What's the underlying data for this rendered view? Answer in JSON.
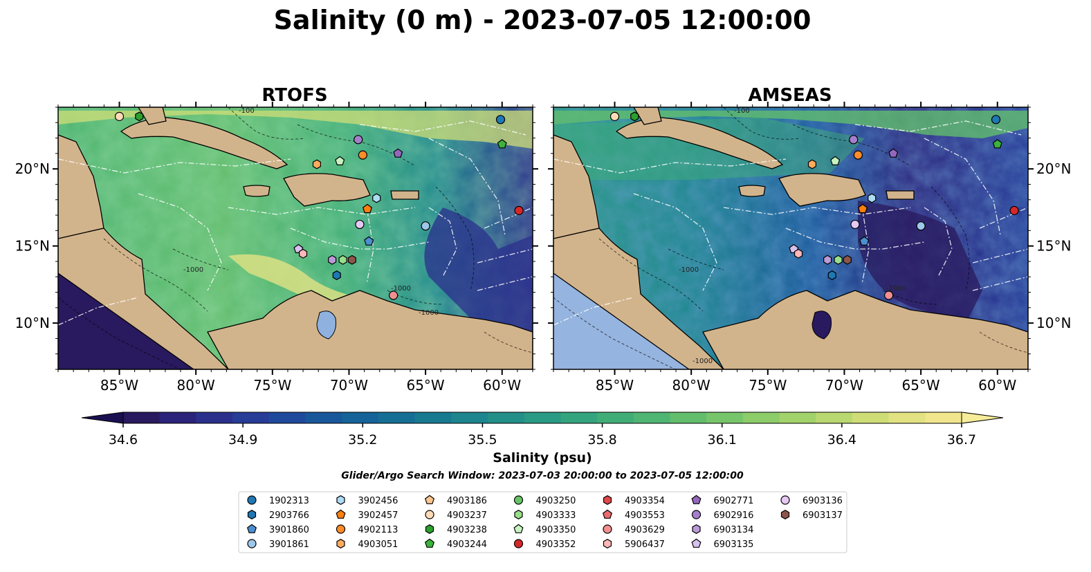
{
  "figure": {
    "title": "Salinity (0 m) - 2023-07-05 12:00:00",
    "search_window": "Glider/Argo Search Window: 2023-07-03 20:00:00 to 2023-07-05 12:00:00"
  },
  "chart_data": [
    {
      "type": "heatmap",
      "title": "RTOFS",
      "variable": "Salinity (0 m)",
      "lon_range": [
        -89,
        -58
      ],
      "lat_range": [
        7,
        24
      ],
      "x_ticks": [
        "85°W",
        "80°W",
        "75°W",
        "70°W",
        "65°W",
        "60°W"
      ],
      "y_ticks": [
        "10°N",
        "15°N",
        "20°N"
      ],
      "y_tick_side": "left",
      "bathymetry_contour_labels": [
        "-1000",
        "-1000",
        "-100",
        "-1000"
      ]
    },
    {
      "type": "heatmap",
      "title": "AMSEAS",
      "variable": "Salinity (0 m)",
      "lon_range": [
        -89,
        -58
      ],
      "lat_range": [
        7,
        24
      ],
      "x_ticks": [
        "85°W",
        "80°W",
        "75°W",
        "70°W",
        "65°W",
        "60°W"
      ],
      "y_ticks": [
        "10°N",
        "15°N",
        "20°N"
      ],
      "y_tick_side": "right",
      "bathymetry_contour_labels": [
        "-1000",
        "-1000",
        "-100",
        "-1000"
      ]
    }
  ],
  "colorbar": {
    "label": "Salinity (psu)",
    "min": 34.6,
    "max": 36.7,
    "ticks": [
      "34.6",
      "34.9",
      "35.2",
      "35.5",
      "35.8",
      "36.1",
      "36.4",
      "36.7"
    ],
    "extend": "both",
    "colors": [
      "#29195e",
      "#2b237a",
      "#2b2f8c",
      "#263c97",
      "#1f4a9b",
      "#19579b",
      "#156398",
      "#156f95",
      "#177a91",
      "#1c858d",
      "#228f88",
      "#299a83",
      "#33a47d",
      "#40ad77",
      "#4fb572",
      "#62bd6d",
      "#77c56a",
      "#8ccc69",
      "#a2d26a",
      "#b9d86f",
      "#cfdd77",
      "#e2e283",
      "#f1e68e"
    ]
  },
  "legend": {
    "items": [
      {
        "label": "1902313",
        "marker": "circle",
        "color": "#1f77b4"
      },
      {
        "label": "2903766",
        "marker": "hexagon",
        "color": "#1f77b4"
      },
      {
        "label": "3901860",
        "marker": "pentagon",
        "color": "#4c8fd1"
      },
      {
        "label": "3901861",
        "marker": "circle",
        "color": "#9ec7ea"
      },
      {
        "label": "3902456",
        "marker": "hexagon",
        "color": "#aedcf5"
      },
      {
        "label": "3902457",
        "marker": "pentagon",
        "color": "#ff7f0e"
      },
      {
        "label": "4902113",
        "marker": "circle",
        "color": "#ff8c2a"
      },
      {
        "label": "4903051",
        "marker": "hexagon",
        "color": "#ffab5e"
      },
      {
        "label": "4903186",
        "marker": "pentagon",
        "color": "#ffc58f"
      },
      {
        "label": "4903237",
        "marker": "circle",
        "color": "#ffdcb8"
      },
      {
        "label": "4903238",
        "marker": "hexagon",
        "color": "#2ca02c"
      },
      {
        "label": "4903244",
        "marker": "pentagon",
        "color": "#3cb33c"
      },
      {
        "label": "4903250",
        "marker": "circle",
        "color": "#66c466"
      },
      {
        "label": "4903333",
        "marker": "hexagon",
        "color": "#98df8a"
      },
      {
        "label": "4903350",
        "marker": "pentagon",
        "color": "#c7f2c0"
      },
      {
        "label": "4903352",
        "marker": "circle",
        "color": "#d62728"
      },
      {
        "label": "4903354",
        "marker": "hexagon",
        "color": "#e0484a"
      },
      {
        "label": "4903553",
        "marker": "pentagon",
        "color": "#eb6a6c"
      },
      {
        "label": "4903629",
        "marker": "circle",
        "color": "#f28f90"
      },
      {
        "label": "5906437",
        "marker": "hexagon",
        "color": "#ffb7b8"
      },
      {
        "label": "6902771",
        "marker": "pentagon",
        "color": "#9467bd"
      },
      {
        "label": "6902916",
        "marker": "circle",
        "color": "#a57fcc"
      },
      {
        "label": "6903134",
        "marker": "hexagon",
        "color": "#bb9ad8"
      },
      {
        "label": "6903135",
        "marker": "pentagon",
        "color": "#d8c0f0"
      },
      {
        "label": "6903136",
        "marker": "circle",
        "color": "#e6c8f5"
      },
      {
        "label": "6903137",
        "marker": "hexagon",
        "color": "#8c564b"
      }
    ]
  },
  "float_positions": [
    {
      "id": "4903237",
      "lon": -85.0,
      "lat": 23.4
    },
    {
      "id": "4903238",
      "lon": -83.7,
      "lat": 23.4
    },
    {
      "id": "1902313",
      "lon": -60.1,
      "lat": 23.2
    },
    {
      "id": "4903244",
      "lon": -60.0,
      "lat": 21.6
    },
    {
      "id": "6902916",
      "lon": -69.4,
      "lat": 21.9
    },
    {
      "id": "6902771",
      "lon": -66.8,
      "lat": 21.0
    },
    {
      "id": "4902113",
      "lon": -69.1,
      "lat": 20.9
    },
    {
      "id": "4903051",
      "lon": -72.1,
      "lat": 20.3
    },
    {
      "id": "4903350",
      "lon": -70.6,
      "lat": 20.5
    },
    {
      "id": "3902456",
      "lon": -68.2,
      "lat": 18.1
    },
    {
      "id": "3902457",
      "lon": -68.8,
      "lat": 17.4
    },
    {
      "id": "4903352",
      "lon": -58.9,
      "lat": 17.3
    },
    {
      "id": "6903136",
      "lon": -69.3,
      "lat": 16.4
    },
    {
      "id": "3901861",
      "lon": -65.0,
      "lat": 16.3
    },
    {
      "id": "3901860",
      "lon": -68.7,
      "lat": 15.3
    },
    {
      "id": "6903135",
      "lon": -73.3,
      "lat": 14.8
    },
    {
      "id": "5906437",
      "lon": -73.0,
      "lat": 14.5
    },
    {
      "id": "6903134",
      "lon": -71.1,
      "lat": 14.1
    },
    {
      "id": "4903333",
      "lon": -70.4,
      "lat": 14.1
    },
    {
      "id": "6903137",
      "lon": -69.8,
      "lat": 14.1
    },
    {
      "id": "2903766",
      "lon": -70.8,
      "lat": 13.1
    },
    {
      "id": "4903629",
      "lon": -67.1,
      "lat": 11.8
    }
  ]
}
